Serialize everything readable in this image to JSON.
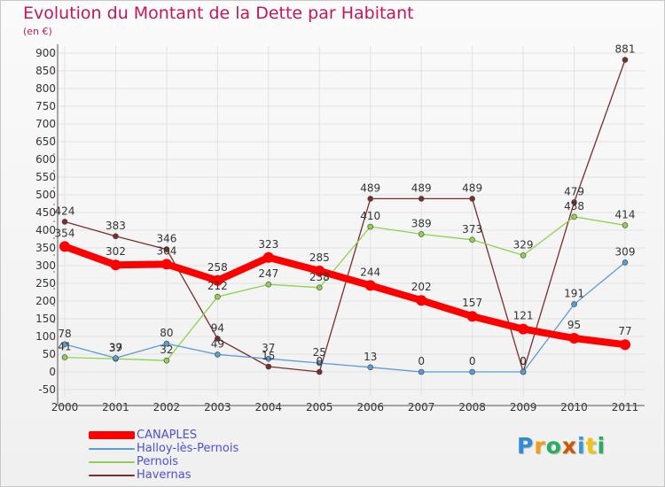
{
  "title": "Evolution du Montant de la Dette par Habitant",
  "subtitle": "(en €)",
  "logo": {
    "text": "Proxiti",
    "letters": [
      "P",
      "r",
      "o",
      "x",
      "i",
      "t",
      "i"
    ],
    "colors": [
      "#2e8bd6",
      "#f39c12",
      "#27ae60",
      "#d35400",
      "#3498db",
      "#f1c40f",
      "#27ae60"
    ]
  },
  "chart_data": {
    "type": "line",
    "title": "Evolution du Montant de la Dette par Habitant",
    "subtitle": "(en €)",
    "xlabel": "",
    "ylabel": "",
    "x": [
      "2000",
      "2001",
      "2002",
      "2003",
      "2004",
      "2005",
      "2006",
      "2007",
      "2008",
      "2009",
      "2010",
      "2011"
    ],
    "ylim": [
      -50,
      900
    ],
    "yticks": [
      "-50",
      "0",
      "50",
      "100",
      "150",
      "200",
      "250",
      "300",
      "350",
      "400",
      "450",
      "500",
      "550",
      "600",
      "650",
      "700",
      "750",
      "800",
      "850",
      "900"
    ],
    "grid": true,
    "legend_position": "bottom-left",
    "series": [
      {
        "name": "CANAPLES",
        "color": "#ff0000",
        "values": [
          354,
          302,
          304,
          258,
          323,
          285,
          244,
          202,
          157,
          121,
          95,
          77
        ],
        "labels": [
          "354",
          "302",
          "304",
          "258",
          "323",
          "285",
          "244",
          "202",
          "157",
          "121",
          "95",
          "77"
        ]
      },
      {
        "name": "Halloy-lès-Pernois",
        "color": "#5b9bd5",
        "values": [
          78,
          39,
          80,
          49,
          37,
          25,
          13,
          0,
          0,
          0,
          191,
          309
        ],
        "labels": [
          "78",
          "39",
          "80",
          "49",
          "37",
          "25",
          "13",
          "0",
          "0",
          "0",
          "191",
          "309"
        ]
      },
      {
        "name": "Pernois",
        "color": "#8fd14f",
        "values": [
          41,
          37,
          32,
          212,
          247,
          238,
          410,
          389,
          373,
          329,
          438,
          414
        ],
        "labels": [
          "41",
          "37",
          "32",
          "212",
          "247",
          "238",
          "410",
          "389",
          "373",
          "329",
          "438",
          "414"
        ]
      },
      {
        "name": "Havernas",
        "color": "#7b2d2d",
        "values": [
          424,
          383,
          346,
          94,
          15,
          0,
          489,
          489,
          489,
          0,
          479,
          881
        ],
        "labels": [
          "424",
          "383",
          "346",
          "94",
          "15",
          "0",
          "489",
          "489",
          "489",
          "0",
          "479",
          "881"
        ]
      }
    ]
  }
}
